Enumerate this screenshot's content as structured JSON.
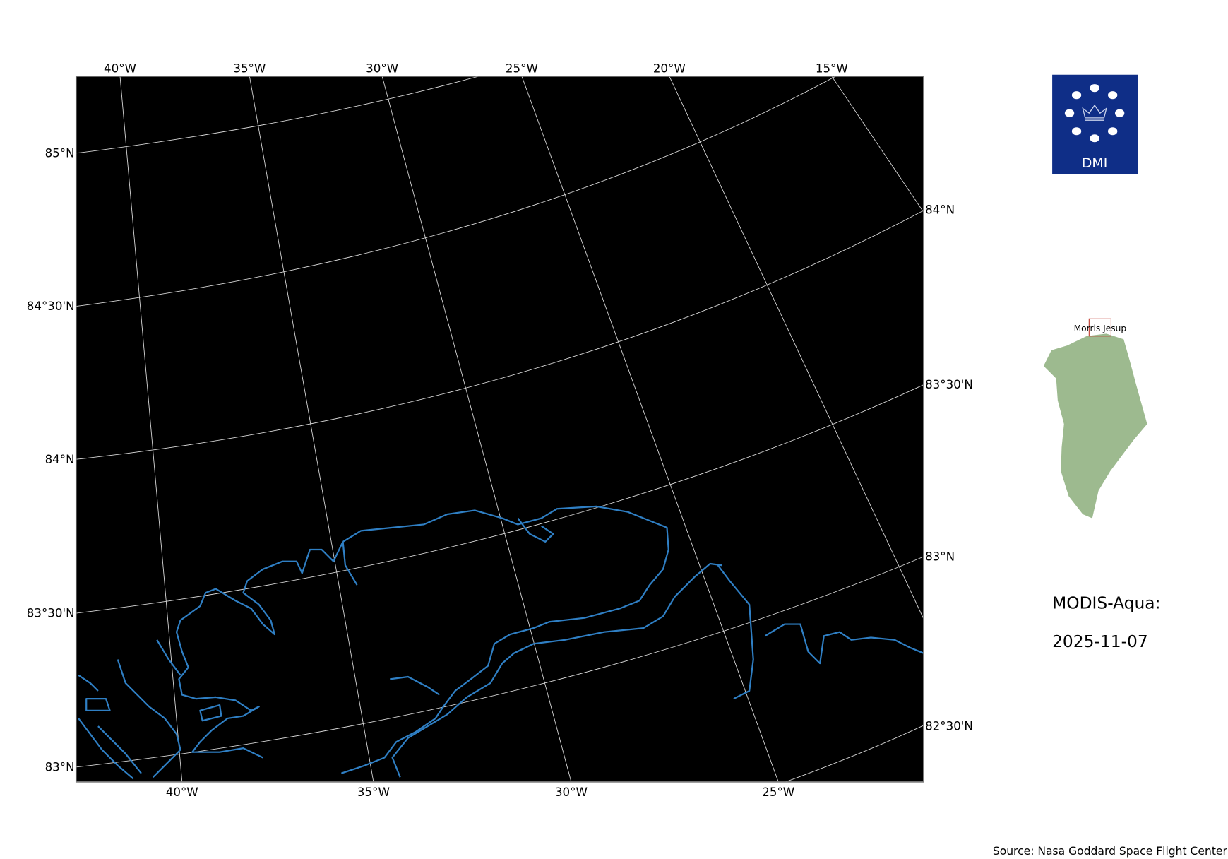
{
  "map": {
    "background_color": "#000000",
    "graticule_color": "#d9d9d9",
    "coastline_color": "#2f7fc4",
    "top_lon_labels": [
      "40°W",
      "35°W",
      "30°W",
      "25°W",
      "20°W",
      "15°W"
    ],
    "bottom_lon_labels": [
      "40°W",
      "35°W",
      "30°W",
      "25°W"
    ],
    "left_lat_labels": [
      "85°N",
      "84°30'N",
      "84°N",
      "83°30'N",
      "83°N"
    ],
    "right_lat_labels": [
      "84°N",
      "83°30'N",
      "83°N",
      "82°30'N"
    ]
  },
  "logo": {
    "text": "DMI",
    "color": "#0f2e87"
  },
  "inset": {
    "label": "Morris Jesup",
    "land_color": "#9dba8f",
    "box_color": "#c0392b"
  },
  "info": {
    "sensor": "MODIS-Aqua:",
    "date": "2025-11-07"
  },
  "source": "Source: Nasa Goddard Space Flight Center"
}
